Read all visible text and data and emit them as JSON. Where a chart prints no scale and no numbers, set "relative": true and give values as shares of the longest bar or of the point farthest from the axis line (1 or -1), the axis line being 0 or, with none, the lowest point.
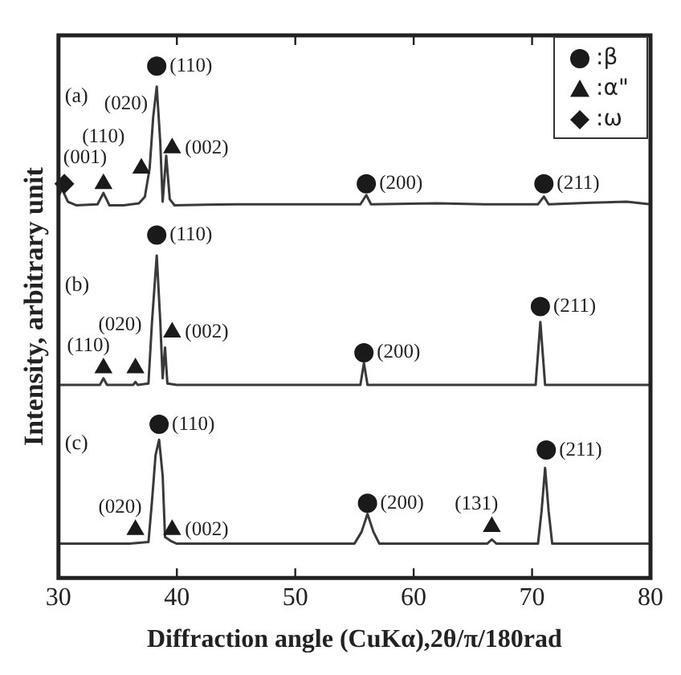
{
  "chart_data": {
    "type": "line",
    "xlabel": "Diffraction angle (CuKα),2θ/π/180rad",
    "ylabel": "Intensity, arbitrary unit",
    "relative": true,
    "xlim": [
      30,
      80
    ],
    "xticks": [
      30,
      40,
      50,
      60,
      70,
      80
    ],
    "grid": false,
    "legend": "top right",
    "series": [
      {
        "type": "line",
        "color": "#3a3a3a",
        "x": [
          30,
          30.3,
          30.8,
          31.5,
          33.3,
          33.8,
          34.3,
          35.5,
          36.8,
          37.3,
          37.7,
          38.0,
          38.3,
          38.6,
          38.8,
          39.1,
          39.4,
          39.8,
          45,
          50,
          55.5,
          56.0,
          56.4,
          62,
          66,
          70.5,
          71.0,
          71.4,
          75,
          78,
          80
        ],
        "values": [
          0.745,
          0.76,
          0.735,
          0.728,
          0.73,
          0.752,
          0.728,
          0.728,
          0.732,
          0.745,
          0.8,
          0.9,
          0.96,
          0.85,
          0.735,
          0.825,
          0.74,
          0.728,
          0.73,
          0.73,
          0.73,
          0.748,
          0.73,
          0.732,
          0.73,
          0.73,
          0.745,
          0.73,
          0.733,
          0.735,
          0.73
        ]
      },
      {
        "type": "line",
        "color": "#3a3a3a",
        "x": [
          30,
          33.5,
          33.8,
          34.1,
          36.3,
          36.5,
          36.7,
          37.6,
          37.9,
          38.3,
          38.6,
          38.8,
          39.0,
          39.2,
          40,
          55.5,
          55.8,
          56.1,
          70.3,
          70.7,
          71.1,
          80
        ],
        "values": [
          0.377,
          0.377,
          0.39,
          0.377,
          0.377,
          0.383,
          0.377,
          0.38,
          0.5,
          0.63,
          0.5,
          0.39,
          0.45,
          0.38,
          0.377,
          0.377,
          0.42,
          0.377,
          0.377,
          0.5,
          0.377,
          0.377
        ]
      },
      {
        "type": "line",
        "color": "#3a3a3a",
        "x": [
          30,
          36,
          37.6,
          37.9,
          38.2,
          38.5,
          38.8,
          39.0,
          39.5,
          40,
          55,
          55.6,
          56.1,
          56.6,
          57.1,
          66.2,
          66.6,
          67.0,
          70.5,
          70.8,
          71.1,
          71.4,
          71.7,
          80
        ],
        "values": [
          0.067,
          0.067,
          0.07,
          0.15,
          0.24,
          0.27,
          0.2,
          0.08,
          0.072,
          0.067,
          0.067,
          0.09,
          0.125,
          0.09,
          0.067,
          0.067,
          0.075,
          0.067,
          0.067,
          0.13,
          0.215,
          0.13,
          0.067,
          0.067
        ]
      },
      {
        "type": "scatter",
        "name": ":β",
        "color": "#1a1a1a",
        "marker": "circle",
        "x": [
          38.3,
          56.0,
          71.0,
          38.3,
          55.8,
          70.7,
          38.5,
          56.1,
          71.2
        ],
        "values": [
          1.0,
          0.77,
          0.77,
          0.67,
          0.44,
          0.53,
          0.3,
          0.146,
          0.25
        ]
      },
      {
        "type": "scatter",
        "name": ":α\"",
        "color": "#1a1a1a",
        "marker": "triangle",
        "x": [
          33.8,
          37.0,
          39.6,
          33.8,
          36.5,
          39.6,
          36.5,
          39.6,
          66.6
        ],
        "values": [
          0.77,
          0.8,
          0.84,
          0.41,
          0.41,
          0.48,
          0.094,
          0.094,
          0.1
        ]
      },
      {
        "type": "scatter",
        "name": ":ω",
        "color": "#1a1a1a",
        "marker": "diamond",
        "x": [
          30.5
        ],
        "values": [
          0.77
        ]
      }
    ],
    "annotations": [
      "(a)",
      "(b)",
      "(c)",
      {
        "text": "(001)",
        "x": 30.5,
        "y": 0.77
      },
      {
        "text": "(110)",
        "x": 33.8,
        "y": 0.77
      },
      {
        "text": "(020)",
        "x": 37.0,
        "y": 0.8
      },
      {
        "text": "(110)",
        "x": 38.3,
        "y": 1.0
      },
      {
        "text": "(002)",
        "x": 39.6,
        "y": 0.84
      },
      {
        "text": "(200)",
        "x": 56.0,
        "y": 0.77
      },
      {
        "text": "(211)",
        "x": 71.0,
        "y": 0.77
      },
      {
        "text": "(110)",
        "x": 33.8,
        "y": 0.41
      },
      {
        "text": "(020)",
        "x": 36.5,
        "y": 0.41
      },
      {
        "text": "(110)",
        "x": 38.3,
        "y": 0.67
      },
      {
        "text": "(002)",
        "x": 39.6,
        "y": 0.48
      },
      {
        "text": "(200)",
        "x": 55.8,
        "y": 0.44
      },
      {
        "text": "(211)",
        "x": 70.7,
        "y": 0.53
      },
      {
        "text": "(020)",
        "x": 36.5,
        "y": 0.094
      },
      {
        "text": "(110)",
        "x": 38.5,
        "y": 0.3
      },
      {
        "text": "(002)",
        "x": 39.6,
        "y": 0.094
      },
      {
        "text": "(200)",
        "x": 56.1,
        "y": 0.146
      },
      {
        "text": "(131)",
        "x": 66.6,
        "y": 0.1
      },
      {
        "text": "(211)",
        "x": 71.2,
        "y": 0.25
      }
    ]
  }
}
